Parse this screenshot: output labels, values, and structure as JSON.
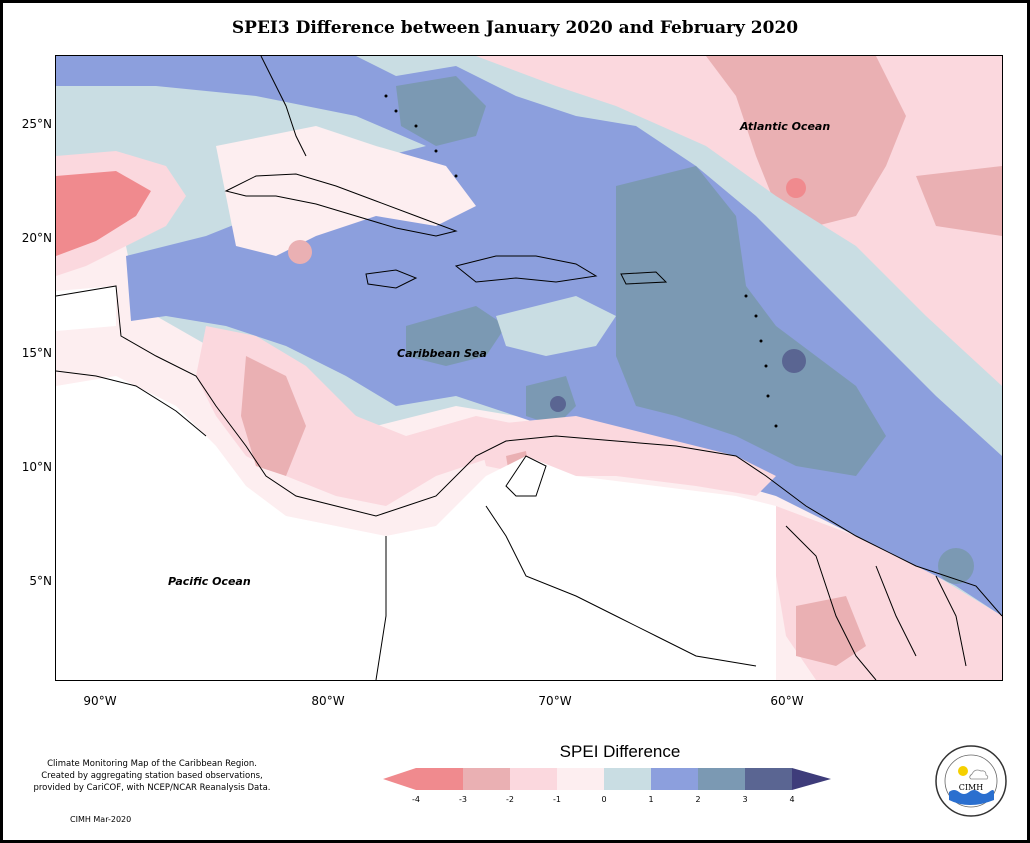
{
  "title": "SPEI3 Difference between January 2020 and February 2020",
  "map": {
    "lat_labels": [
      "25°N",
      "20°N",
      "15°N",
      "10°N",
      "5°N"
    ],
    "lon_labels": [
      "90°W",
      "80°W",
      "70°W",
      "60°W"
    ],
    "ocean_labels": {
      "atlantic": "Atlantic Ocean",
      "caribbean": "Caribbean Sea",
      "pacific": "Pacific Ocean"
    },
    "colors": {
      "land_outline": "#000000",
      "ocean_none": "#ffffff",
      "minus4": "#f08a8e",
      "minus3": "#eab0b3",
      "minus2": "#fbd8de",
      "minus1": "#fdeef0",
      "zero": "#c9dde3",
      "one": "#8c9fdd",
      "two": "#7b99b3",
      "three": "#5a6592",
      "four": "#3e3c7a"
    }
  },
  "legend": {
    "title": "SPEI Difference",
    "ticks": [
      "-4",
      "-3",
      "-2",
      "-1",
      "0",
      "1",
      "2",
      "3",
      "4"
    ]
  },
  "credit": {
    "line1": "Climate Monitoring Map of the Caribbean Region.",
    "line2": "Created by aggregating station based observations,",
    "line3": "provided by CariCOF, with NCEP/NCAR Reanalysis Data.",
    "date": "CIMH Mar-2020"
  },
  "logo": {
    "text": "CIMH"
  }
}
